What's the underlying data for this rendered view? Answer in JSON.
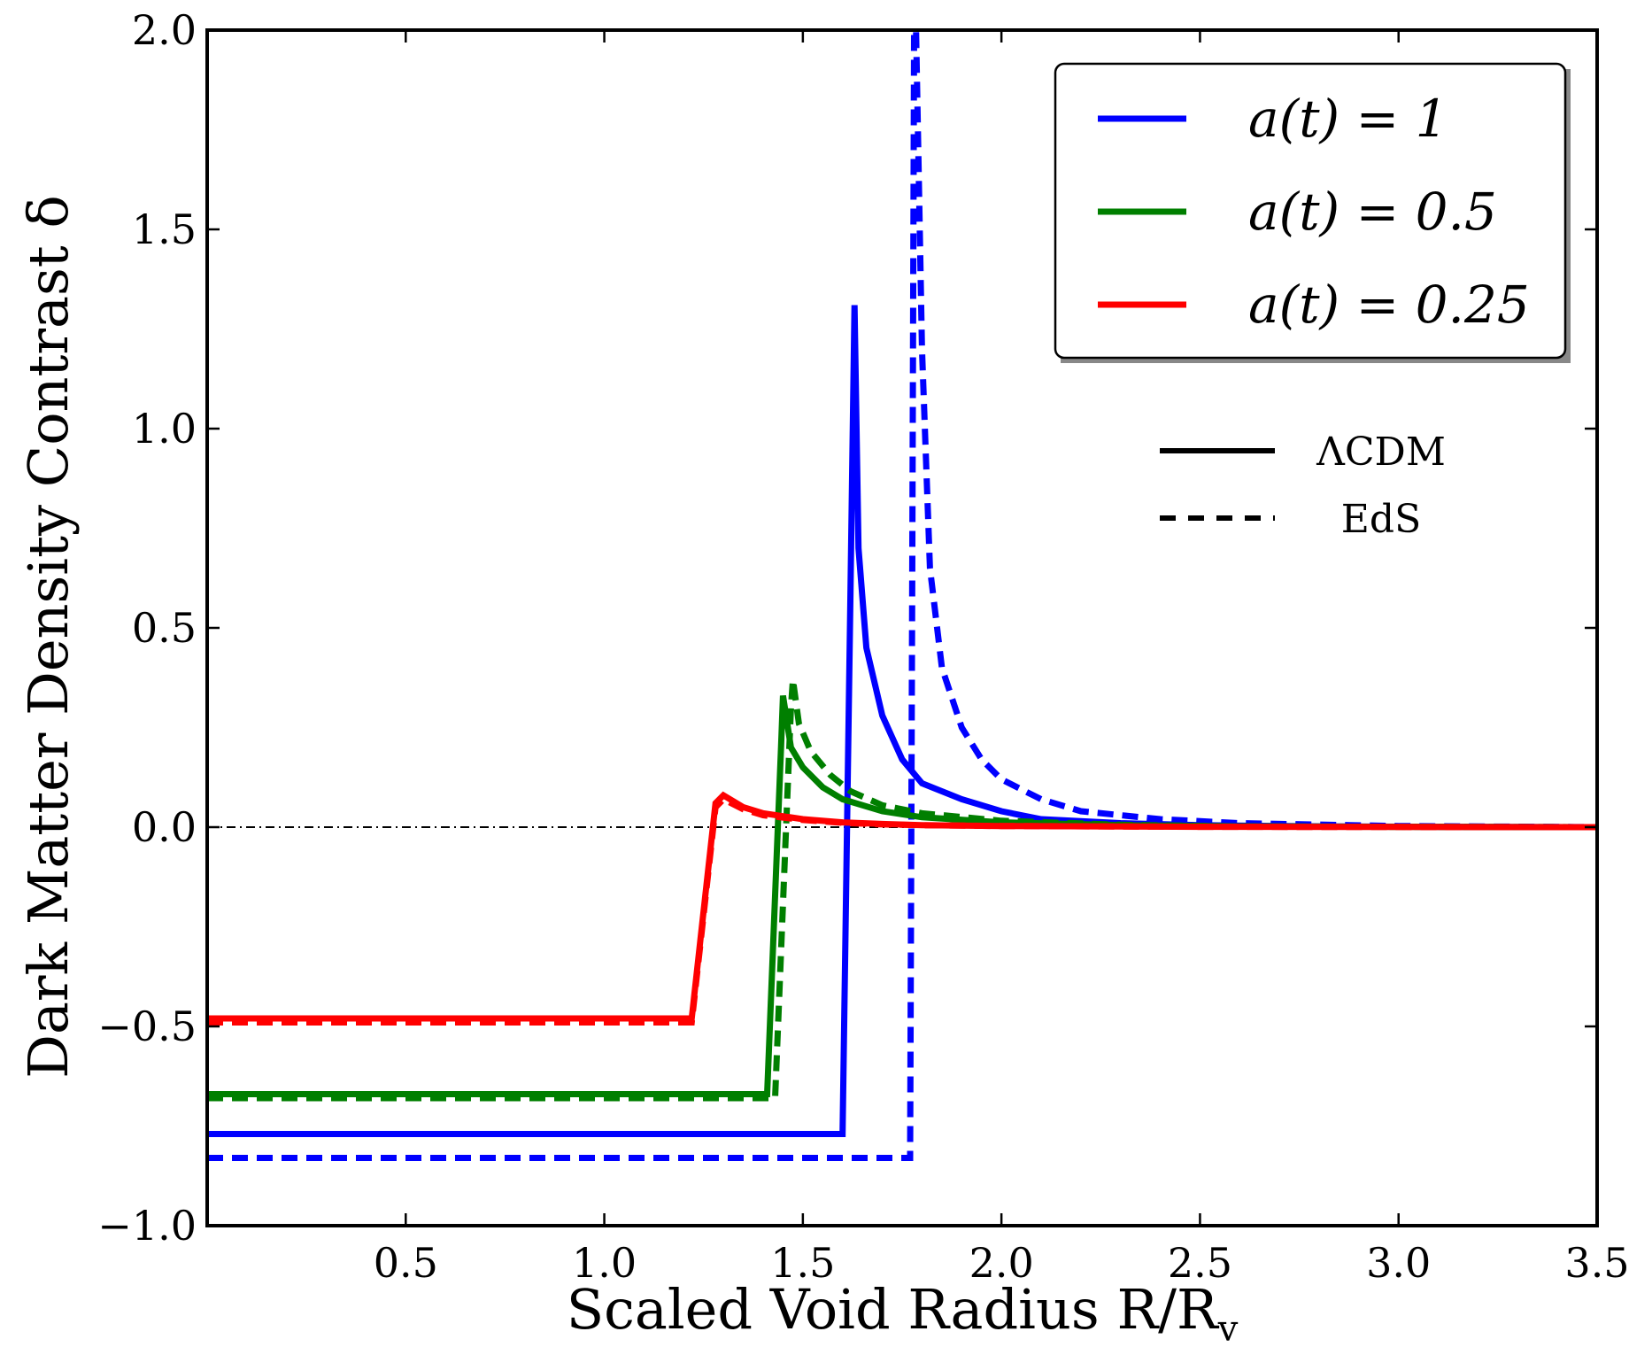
{
  "chart_data": {
    "type": "line",
    "xlabel": "Scaled Void Radius R/R",
    "xlabel_sub": "v",
    "ylabel": "Dark Matter Density Contrast δ",
    "xlim": [
      0.0,
      3.5
    ],
    "ylim": [
      -1.0,
      2.0
    ],
    "x_ticks": [
      "0.5",
      "1.0",
      "1.5",
      "2.0",
      "2.5",
      "3.0",
      "3.5"
    ],
    "x_tick_values": [
      0.5,
      1.0,
      1.5,
      2.0,
      2.5,
      3.0,
      3.5
    ],
    "y_ticks": [
      "−1.0",
      "−0.5",
      "0.0",
      "0.5",
      "1.0",
      "1.5",
      "2.0"
    ],
    "y_tick_values": [
      -1.0,
      -0.5,
      0.0,
      0.5,
      1.0,
      1.5,
      2.0
    ],
    "grid": false,
    "legend_placement": "top-right",
    "reference_line": {
      "y": 0.0,
      "style": "dashdot"
    },
    "colors": {
      "blue": "#0000ff",
      "green": "#007f00",
      "red": "#ff0000"
    },
    "legend": {
      "series_entries": [
        {
          "label": "a(t) = 1",
          "color": "#0000ff"
        },
        {
          "label": "a(t) = 0.5",
          "color": "#007f00"
        },
        {
          "label": "a(t) = 0.25",
          "color": "#ff0000"
        }
      ],
      "style_entries": [
        {
          "label": "ΛCDM",
          "style": "solid"
        },
        {
          "label": "EdS",
          "style": "dashed"
        }
      ]
    },
    "series": [
      {
        "color": "#0000ff",
        "style": "solid",
        "x": [
          0.0,
          1.6,
          1.62,
          1.63,
          1.64,
          1.66,
          1.7,
          1.75,
          1.8,
          1.9,
          2.0,
          2.1,
          2.3,
          2.5,
          2.8,
          3.1,
          3.5
        ],
        "y": [
          -0.77,
          -0.77,
          0.6,
          1.31,
          0.7,
          0.45,
          0.28,
          0.17,
          0.11,
          0.07,
          0.04,
          0.02,
          0.01,
          0.005,
          0.002,
          0.001,
          0.0
        ]
      },
      {
        "color": "#0000ff",
        "style": "dashed",
        "x": [
          0.0,
          1.77,
          1.775,
          1.78,
          1.785,
          1.8,
          1.82,
          1.85,
          1.9,
          1.95,
          2.0,
          2.1,
          2.2,
          2.4,
          2.6,
          3.0,
          3.5
        ],
        "y": [
          -0.83,
          -0.83,
          0.5,
          2.0,
          2.0,
          1.2,
          0.65,
          0.4,
          0.25,
          0.17,
          0.12,
          0.07,
          0.04,
          0.02,
          0.01,
          0.003,
          0.0
        ]
      },
      {
        "color": "#007f00",
        "style": "solid",
        "x": [
          0.0,
          1.41,
          1.445,
          1.45,
          1.47,
          1.5,
          1.55,
          1.6,
          1.7,
          1.8,
          2.0,
          2.3,
          2.6,
          3.0,
          3.5
        ],
        "y": [
          -0.67,
          -0.67,
          0.2,
          0.33,
          0.2,
          0.15,
          0.1,
          0.07,
          0.04,
          0.025,
          0.012,
          0.005,
          0.002,
          0.001,
          0.0
        ]
      },
      {
        "color": "#007f00",
        "style": "dashed",
        "x": [
          0.0,
          1.43,
          1.47,
          1.475,
          1.49,
          1.52,
          1.57,
          1.62,
          1.7,
          1.8,
          2.0,
          2.3,
          2.6,
          3.0,
          3.5
        ],
        "y": [
          -0.68,
          -0.68,
          0.3,
          0.37,
          0.26,
          0.19,
          0.13,
          0.09,
          0.055,
          0.035,
          0.016,
          0.006,
          0.002,
          0.001,
          0.0
        ]
      },
      {
        "color": "#ff0000",
        "style": "solid",
        "x": [
          0.0,
          1.22,
          1.28,
          1.3,
          1.35,
          1.4,
          1.5,
          1.6,
          1.7,
          1.8,
          2.0,
          2.5,
          3.0,
          3.5
        ],
        "y": [
          -0.48,
          -0.48,
          0.06,
          0.08,
          0.05,
          0.035,
          0.02,
          0.012,
          0.008,
          0.005,
          0.003,
          0.001,
          0.0005,
          0.0
        ]
      },
      {
        "color": "#ff0000",
        "style": "dashed",
        "x": [
          0.0,
          1.22,
          1.28,
          1.3,
          1.35,
          1.4,
          1.5,
          1.6,
          1.7,
          1.8,
          2.0,
          2.5,
          3.0,
          3.5
        ],
        "y": [
          -0.49,
          -0.49,
          0.05,
          0.07,
          0.045,
          0.03,
          0.018,
          0.011,
          0.007,
          0.005,
          0.003,
          0.001,
          0.0005,
          0.0
        ]
      }
    ]
  }
}
